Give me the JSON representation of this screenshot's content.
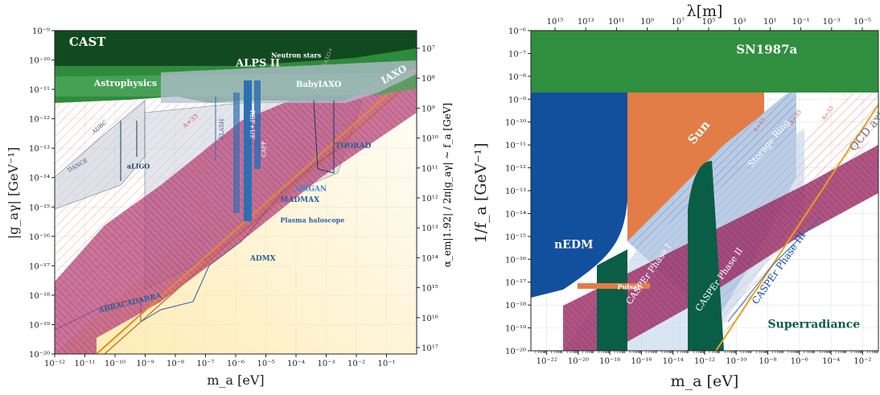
{
  "chart_data": [
    {
      "type": "area",
      "xlabel": "m_a [eV]",
      "ylabel": "|g_aγ| [GeV⁻¹]",
      "y2label": "α_em|1.92| / 2π|g_aγ| ~ f_a [GeV]",
      "x_scale": "log",
      "y_scale": "log",
      "x_range": [
        1e-12,
        1
      ],
      "y_range": [
        1e-20,
        1e-09
      ],
      "x_ticks": [
        "10⁻¹²",
        "10⁻¹¹",
        "10⁻¹⁰",
        "10⁻⁹",
        "10⁻⁸",
        "10⁻⁷",
        "10⁻⁶",
        "10⁻⁵",
        "10⁻⁴",
        "10⁻³",
        "10⁻²",
        "10⁻¹"
      ],
      "y_ticks": [
        "10⁻²⁰",
        "10⁻¹⁹",
        "10⁻¹⁸",
        "10⁻¹⁷",
        "10⁻¹⁶",
        "10⁻¹⁵",
        "10⁻¹⁴",
        "10⁻¹³",
        "10⁻¹²",
        "10⁻¹¹",
        "10⁻¹⁰",
        "10⁻⁹"
      ],
      "y2_ticks": [
        "10⁷",
        "10⁸",
        "10⁹",
        "10¹⁰",
        "10¹¹",
        "10¹²",
        "10¹³",
        "10¹⁴",
        "10¹⁵",
        "10¹⁶",
        "10¹⁷"
      ],
      "regions": [
        {
          "label": "CAST",
          "x": 3e-12,
          "y": 3e-10
        },
        {
          "label": "ALPS II",
          "x": 1e-06,
          "y": 6e-11
        },
        {
          "label": "Neutron stars",
          "x": 1.5e-05,
          "y": 1.2e-10
        },
        {
          "label": "Astrophysics",
          "x": 2e-11,
          "y": 1.3e-11
        },
        {
          "label": "BabyIAXO",
          "x": 0.0001,
          "y": 1.2e-11
        },
        {
          "label": "IAXO",
          "x": 0.08,
          "y": 1.5e-11
        },
        {
          "label": "DANCE",
          "x": 3e-12,
          "y": 1.5e-14
        },
        {
          "label": "ADBC",
          "x": 2e-11,
          "y": 3e-13
        },
        {
          "label": "aLIGO",
          "x": 2.5e-10,
          "y": 2e-14
        },
        {
          "label": "FLASH",
          "x": 4e-07,
          "y": 2e-13
        },
        {
          "label": "RBF+UF",
          "x": 3e-06,
          "y": 2e-12
        },
        {
          "label": "CAPP",
          "x": 1e-05,
          "y": 5e-14
        },
        {
          "label": "TOORAD",
          "x": 0.002,
          "y": 1e-13
        },
        {
          "label": "ORGAN",
          "x": 0.0001,
          "y": 3.5e-15
        },
        {
          "label": "MADMAX",
          "x": 3e-05,
          "y": 1.5e-15
        },
        {
          "label": "Plasma haloscope",
          "x": 3e-05,
          "y": 3e-16
        },
        {
          "label": "ADMX",
          "x": 3e-06,
          "y": 1.5e-17
        },
        {
          "label": "ABRACADABRA",
          "x": 3e-11,
          "y": 2.5e-19
        },
        {
          "label": "IAXO+",
          "x": 0.001,
          "y": 6e-11
        }
      ],
      "band_labels": [
        "A=33",
        "A=33",
        "A=33"
      ]
    },
    {
      "type": "area",
      "xlabel": "m_a [eV]",
      "ylabel": "1/f_a [GeV⁻¹]",
      "x2label": "λ[m]",
      "x_scale": "log",
      "y_scale": "log",
      "x_range": [
        1e-23,
        0.1
      ],
      "y_range": [
        1e-20,
        1e-06
      ],
      "x_ticks": [
        "10⁻²²",
        "10⁻²⁰",
        "10⁻¹⁸",
        "10⁻¹⁶",
        "10⁻¹⁴",
        "10⁻¹²",
        "10⁻¹⁰",
        "10⁻⁸",
        "10⁻⁶",
        "10⁻⁴",
        "10⁻²"
      ],
      "x2_ticks": [
        "10¹⁵",
        "10¹³",
        "10¹¹",
        "10⁹",
        "10⁷",
        "10⁵",
        "10³",
        "10¹",
        "10⁻¹",
        "10⁻³",
        "10⁻⁵"
      ],
      "y_ticks": [
        "10⁻²⁰",
        "10⁻¹⁹",
        "10⁻¹⁸",
        "10⁻¹⁷",
        "10⁻¹⁶",
        "10⁻¹⁵",
        "10⁻¹⁴",
        "10⁻¹³",
        "10⁻¹²",
        "10⁻¹¹",
        "10⁻¹⁰",
        "10⁻⁹",
        "10⁻⁸",
        "10⁻⁷",
        "10⁻⁶"
      ],
      "regions": [
        {
          "label": "SN1987a",
          "x": 1e-10,
          "y": 1e-07
        },
        {
          "label": "Sun",
          "x": 2e-13,
          "y": 1e-11
        },
        {
          "label": "Storage Ring",
          "x": 1e-09,
          "y": 1e-12
        },
        {
          "label": "QCD axion",
          "x": 0.003,
          "y": 5e-12
        },
        {
          "label": "nEDM",
          "x": 3e-22,
          "y": 3e-16
        },
        {
          "label": "Pulsar",
          "x": 3e-18,
          "y": 5e-18
        },
        {
          "label": "CASPEr Phase I",
          "x": 2e-17,
          "y": 1e-18
        },
        {
          "label": "CASPEr Phase II",
          "x": 5e-13,
          "y": 5e-19
        },
        {
          "label": "CASPEr Phase III",
          "x": 2e-09,
          "y": 1e-18
        },
        {
          "label": "Superradiance",
          "x": 1e-08,
          "y": 1e-19
        }
      ],
      "band_labels": [
        "A=33",
        "A=33",
        "A=33"
      ]
    }
  ],
  "icons": {
    "hatch": "hatch-pattern"
  },
  "colors": {
    "cast": "#124a20",
    "astro": "#2e8b3c",
    "alps": "#3a9a4a",
    "iaxo": "#3f8a47",
    "band": "#9c2a64",
    "qcd": "#e8a020",
    "haloscope": "#2d6fb3",
    "sun": "#e27d47",
    "nedm": "#124f9c",
    "sn": "#2f8f3e",
    "casper": "#0a5e45",
    "storage": "#5a86c0"
  }
}
